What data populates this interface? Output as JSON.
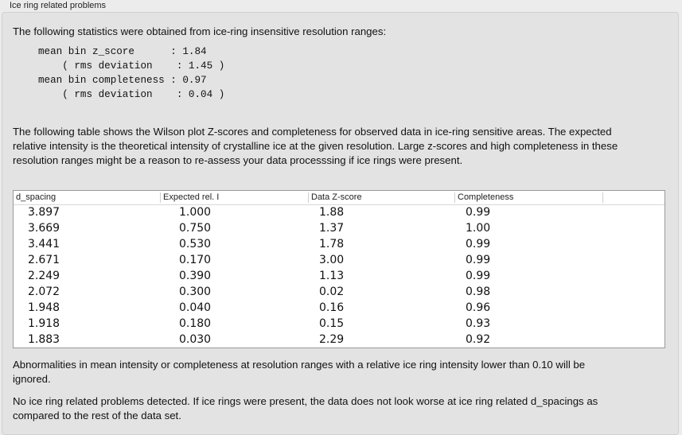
{
  "group_title": "Ice ring related problems",
  "intro": "The following statistics were obtained from ice-ring insensitive resolution ranges:",
  "stats": "mean bin z_score      : 1.84\n    ( rms deviation    : 1.45 )\nmean bin completeness : 0.97\n    ( rms deviation    : 0.04 )",
  "table_intro": "The following table shows the Wilson plot Z-scores and completeness for observed data in ice-ring sensitive areas. The expected relative intensity is the theoretical intensity of crystalline ice at the given resolution. Large z-scores and high completeness in these resolution ranges might be a reason to re-assess your data processsing if ice rings were present.",
  "table": {
    "columns": [
      "d_spacing",
      "Expected rel. I",
      "Data Z-score",
      "Completeness"
    ],
    "rows": [
      [
        "3.897",
        "1.000",
        "1.88",
        "0.99"
      ],
      [
        "3.669",
        "0.750",
        "1.37",
        "1.00"
      ],
      [
        "3.441",
        "0.530",
        "1.78",
        "0.99"
      ],
      [
        "2.671",
        "0.170",
        "3.00",
        "0.99"
      ],
      [
        "2.249",
        "0.390",
        "1.13",
        "0.99"
      ],
      [
        "2.072",
        "0.300",
        "0.02",
        "0.98"
      ],
      [
        "1.948",
        "0.040",
        "0.16",
        "0.96"
      ],
      [
        "1.918",
        "0.180",
        "0.15",
        "0.93"
      ],
      [
        "1.883",
        "0.030",
        "2.29",
        "0.92"
      ]
    ]
  },
  "note": "Abnormalities in mean intensity or completeness at resolution ranges with a relative ice ring intensity lower than 0.10 will be ignored.",
  "conclusion": "No ice ring related problems detected. If ice rings were present, the data does not look worse at ice ring related d_spacings as compared to the rest of the data set."
}
